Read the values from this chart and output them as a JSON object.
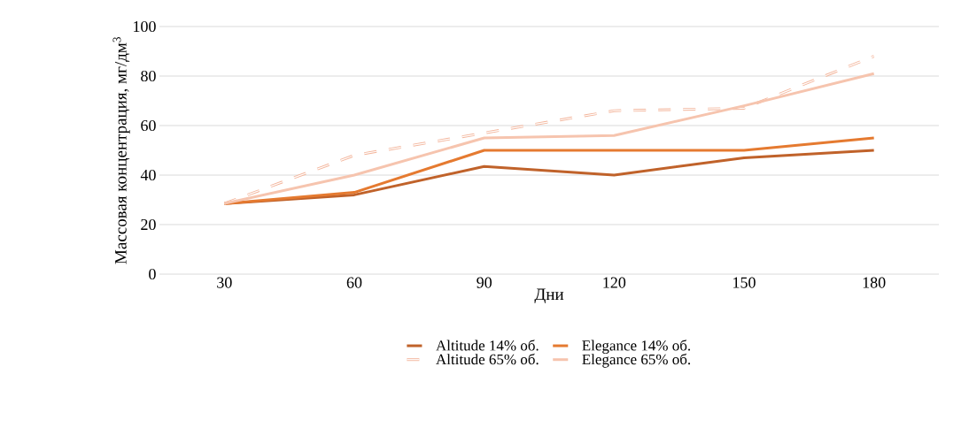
{
  "chart_data": {
    "type": "line",
    "xlabel": "Дни",
    "ylabel": "Массовая концентрация, мг/дм$^{3}$",
    "categories": [
      "30",
      "60",
      "90",
      "120",
      "150",
      "180"
    ],
    "series": [
      {
        "name": "Altitude  14% об.",
        "color": "#c0622a",
        "values": [
          28.5,
          32,
          43.5,
          40,
          47,
          50
        ]
      },
      {
        "name": "Elegance  14% об.",
        "color": "#e57a30",
        "values": [
          28.5,
          33,
          50,
          50,
          50,
          55
        ]
      },
      {
        "name": "Altitude  65% об.",
        "color": "#f3b49a",
        "line_style": "dashed",
        "values": [
          28.5,
          48,
          57,
          66,
          67,
          88
        ]
      },
      {
        "name": "Elegance  65% об.",
        "color": "#f6c4ae",
        "values": [
          28.5,
          40,
          55,
          56,
          68,
          81
        ]
      }
    ],
    "ylim": [
      0,
      100
    ],
    "yticks": [
      0,
      20,
      40,
      60,
      80,
      100
    ],
    "grid": "y",
    "legend": "bottom",
    "marker": "none"
  }
}
